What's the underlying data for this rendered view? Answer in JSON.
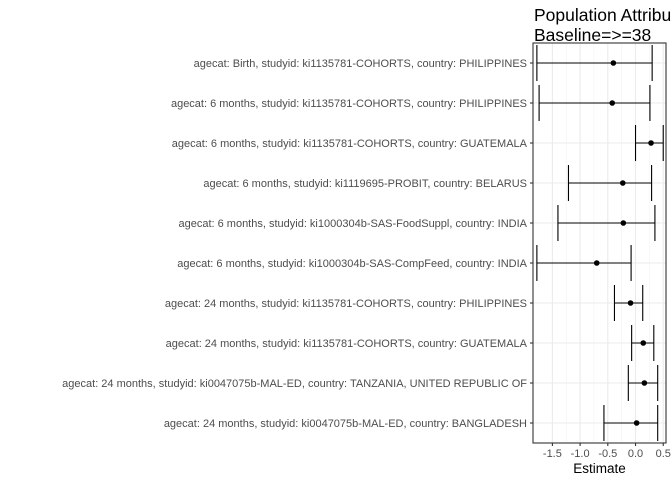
{
  "chart_data": {
    "type": "forest",
    "title_lines": [
      "Population Attribu",
      "Baseline=>=38"
    ],
    "xlabel": "Estimate",
    "ylabel": "",
    "xlim": [
      -1.85,
      0.55
    ],
    "x_ticks": [
      -1.5,
      -1.0,
      -0.5,
      0.0,
      0.5
    ],
    "x_tick_labels": [
      "-1.5",
      "-1.0",
      "-0.5",
      "0.0",
      "0.5"
    ],
    "grid": true,
    "rows": [
      {
        "label": "agecat: Birth, studyid: ki1135781-COHORTS, country: PHILIPPINES",
        "estimate": -0.4,
        "lower": -1.78,
        "upper": 0.3
      },
      {
        "label": "agecat: 6 months, studyid: ki1135781-COHORTS, country: PHILIPPINES",
        "estimate": -0.42,
        "lower": -1.74,
        "upper": 0.26
      },
      {
        "label": "agecat: 6 months, studyid: ki1135781-COHORTS, country: GUATEMALA",
        "estimate": 0.28,
        "lower": 0.0,
        "upper": 0.5
      },
      {
        "label": "agecat: 6 months, studyid: ki1119695-PROBIT, country: BELARUS",
        "estimate": -0.23,
        "lower": -1.21,
        "upper": 0.29
      },
      {
        "label": "agecat: 6 months, studyid: ki1000304b-SAS-FoodSuppl, country: INDIA",
        "estimate": -0.22,
        "lower": -1.4,
        "upper": 0.35
      },
      {
        "label": "agecat: 6 months, studyid: ki1000304b-SAS-CompFeed, country: INDIA",
        "estimate": -0.7,
        "lower": -1.78,
        "upper": -0.08
      },
      {
        "label": "agecat: 24 months, studyid: ki1135781-COHORTS, country: PHILIPPINES",
        "estimate": -0.09,
        "lower": -0.38,
        "upper": 0.13
      },
      {
        "label": "agecat: 24 months, studyid: ki1135781-COHORTS, country: GUATEMALA",
        "estimate": 0.14,
        "lower": -0.07,
        "upper": 0.33
      },
      {
        "label": "agecat: 24 months, studyid: ki0047075b-MAL-ED, country: TANZANIA, UNITED REPUBLIC OF",
        "estimate": 0.16,
        "lower": -0.13,
        "upper": 0.4
      },
      {
        "label": "agecat: 24 months, studyid: ki0047075b-MAL-ED, country: BANGLADESH",
        "estimate": 0.02,
        "lower": -0.57,
        "upper": 0.4
      }
    ]
  }
}
